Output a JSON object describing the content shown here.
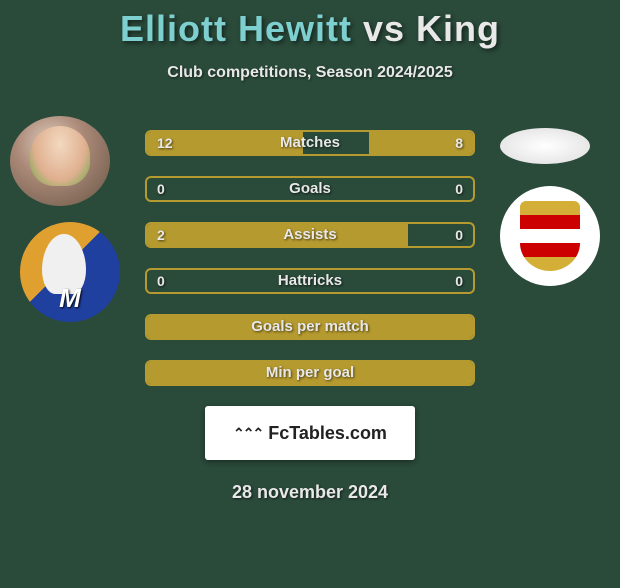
{
  "title": {
    "player1": "Elliott Hewitt",
    "vs": "vs",
    "player2": "King"
  },
  "subtitle": "Club competitions, Season 2024/2025",
  "colors": {
    "accent": "#b59a2f",
    "bg": "#2a4a3a",
    "text": "#e8e8e8"
  },
  "rows": [
    {
      "label": "Matches",
      "left": "12",
      "right": "8",
      "left_pct": 48,
      "right_pct": 32
    },
    {
      "label": "Goals",
      "left": "0",
      "right": "0",
      "left_pct": 0,
      "right_pct": 0
    },
    {
      "label": "Assists",
      "left": "2",
      "right": "0",
      "left_pct": 80,
      "right_pct": 0
    },
    {
      "label": "Hattricks",
      "left": "0",
      "right": "0",
      "left_pct": 0,
      "right_pct": 0
    },
    {
      "label": "Goals per match",
      "left": "",
      "right": "",
      "full": true
    },
    {
      "label": "Min per goal",
      "left": "",
      "right": "",
      "full": true
    }
  ],
  "branding": {
    "text": "FcTables.com",
    "chevrons": "⌃⌃⌃"
  },
  "date": "28 november 2024"
}
